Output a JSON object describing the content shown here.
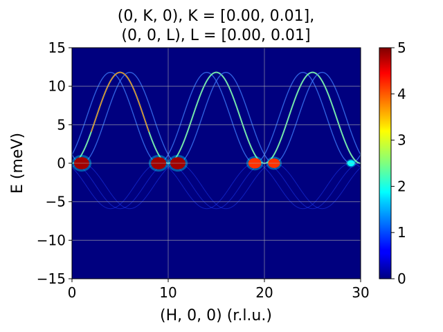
{
  "chart_data": {
    "type": "heatmap",
    "title_line1": "(0, K, 0), K = [0.00, 0.01],",
    "title_line2": "(0, 0, L), L = [0.00, 0.01]",
    "xlabel": "(H, 0, 0) (r.l.u.)",
    "ylabel": "E (meV)",
    "xlim": [
      0,
      30
    ],
    "ylim": [
      -15,
      15
    ],
    "xticks": [
      0,
      10,
      20,
      30
    ],
    "yticks": [
      -15,
      -10,
      -5,
      0,
      5,
      10,
      15
    ],
    "grid": true,
    "colormap": "jet",
    "colorbar": {
      "range": [
        0,
        5
      ],
      "ticks": [
        0,
        1,
        2,
        3,
        4,
        5
      ]
    },
    "dispersion": {
      "bandwidth_meV": 11.8,
      "period_H": 10,
      "branch_shifts_H": [
        -1,
        0,
        1
      ]
    },
    "bright_spots": [
      {
        "H": 1,
        "E": 0,
        "intensity": 5
      },
      {
        "H": 9,
        "E": 0,
        "intensity": 5
      },
      {
        "H": 11,
        "E": 0,
        "intensity": 5
      },
      {
        "H": 19,
        "E": 0,
        "intensity": 4
      },
      {
        "H": 21,
        "E": 0,
        "intensity": 3.5
      },
      {
        "H": 29,
        "E": 0,
        "intensity": 1.5
      }
    ],
    "colors": {
      "background": "#00007f",
      "grid": "#b0b0b0"
    }
  }
}
